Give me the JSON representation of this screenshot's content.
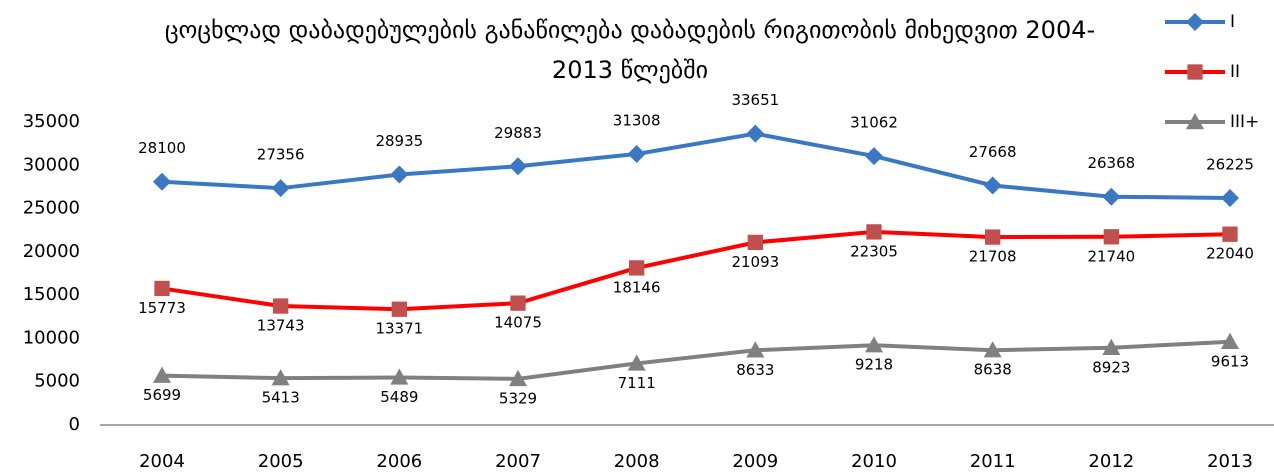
{
  "chart_data": {
    "type": "line",
    "title": "ცოცხლად  დაბადებულების განაწილება დაბადების რიგითობის მიხედვით 2004-2013 წლებში",
    "categories": [
      "2004",
      "2005",
      "2006",
      "2007",
      "2008",
      "2009",
      "2010",
      "2011",
      "2012",
      "2013"
    ],
    "series": [
      {
        "name": "I",
        "color": "#3a78c4",
        "marker": "diamond",
        "label_position": "above",
        "values": [
          28100,
          27356,
          28935,
          29883,
          31308,
          33651,
          31062,
          27668,
          26368,
          26225
        ]
      },
      {
        "name": "II",
        "color": "#ff0000",
        "marker_color": "#c0504d",
        "marker": "square",
        "label_position": "below",
        "values": [
          15773,
          13743,
          13371,
          14075,
          18146,
          21093,
          22305,
          21708,
          21740,
          22040
        ]
      },
      {
        "name": "III+",
        "color": "#808080",
        "marker": "triangle",
        "label_position": "below",
        "values": [
          5699,
          5413,
          5489,
          5329,
          7111,
          8633,
          9218,
          8638,
          8923,
          9613
        ]
      }
    ],
    "ylim": [
      0,
      35000
    ],
    "yticks": [
      0,
      5000,
      10000,
      15000,
      20000,
      25000,
      30000,
      35000
    ],
    "grid": false,
    "legend": "top-right"
  }
}
